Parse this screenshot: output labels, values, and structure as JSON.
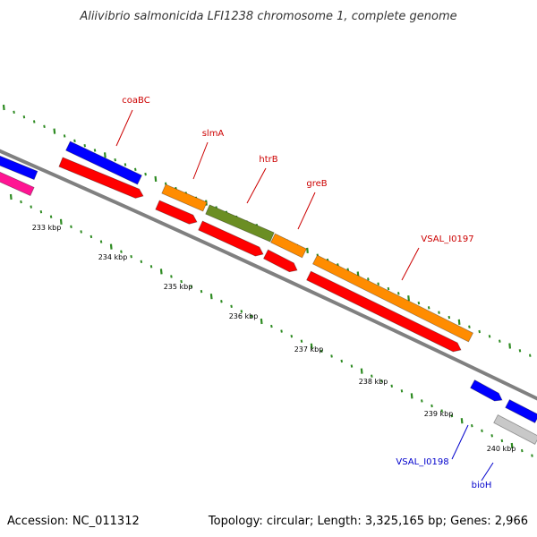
{
  "title": "Aliivibrio salmonicida LFI1238 chromosome 1, complete genome",
  "footer": {
    "accession": "Accession: NC_011312",
    "summary": "Topology: circular; Length: 3,325,165 bp; Genes: 2,966"
  },
  "colors": {
    "backbone": "#808080",
    "tick": "#2e8b22",
    "cds": "#ff0000",
    "label_top": "#cc0000",
    "label_bottom": "#0000cc"
  },
  "ticks": [
    {
      "label": "233 kbp"
    },
    {
      "label": "234 kbp"
    },
    {
      "label": "235 kbp"
    },
    {
      "label": "236 kbp"
    },
    {
      "label": "237 kbp"
    },
    {
      "label": "238 kbp"
    },
    {
      "label": "239 kbp"
    },
    {
      "label": "240 kbp"
    }
  ],
  "genes": [
    {
      "name": "coaBC",
      "color": "#0000ff"
    },
    {
      "name": "slmA",
      "color": "#ff8c00"
    },
    {
      "name": "htrB",
      "color": "#6b8e23"
    },
    {
      "name": "greB",
      "color": "#ff8c00"
    },
    {
      "name": "VSAL_I0197",
      "color": "#ff8c00"
    },
    {
      "name": "VSAL_I0198",
      "color": "#0000ff"
    },
    {
      "name": "bioH",
      "color": "#0000ff"
    }
  ]
}
